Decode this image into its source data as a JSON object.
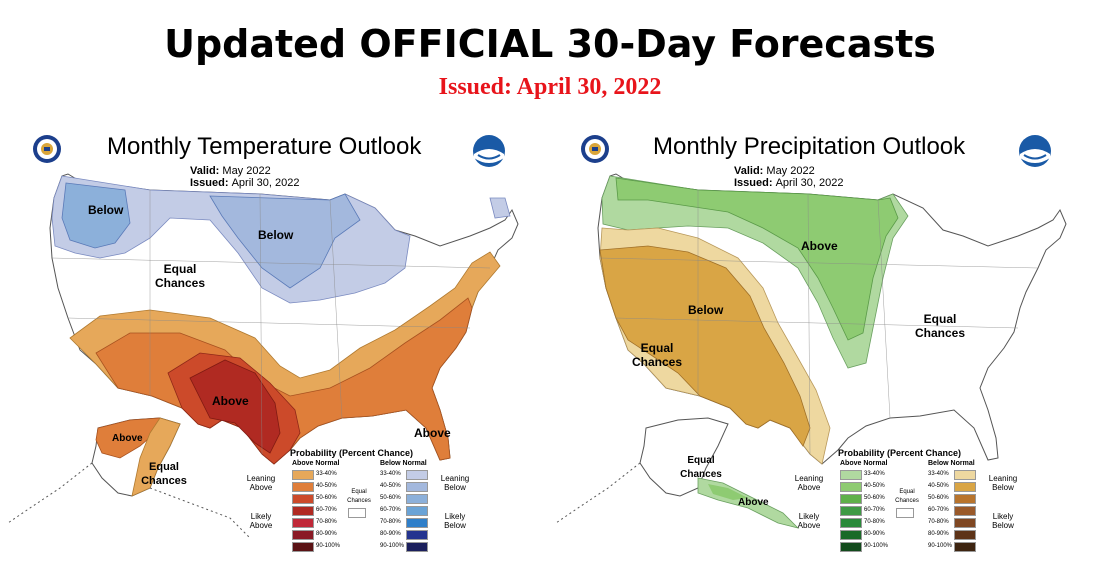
{
  "header": {
    "title": "Updated OFFICIAL 30-Day Forecasts",
    "issued": "Issued: April 30, 2022"
  },
  "temperature": {
    "title": "Monthly Temperature Outlook",
    "valid_label": "Valid:",
    "valid_value": "May 2022",
    "issued_label": "Issued:",
    "issued_value": "April 30, 2022",
    "regions": {
      "below_nw": "Below",
      "below_north": "Below",
      "equal_conus": "Equal Chances",
      "above_south": "Above",
      "above_fl": "Above",
      "above_ak": "Above",
      "equal_ak": "Equal Chances"
    },
    "colors": {
      "below_33": "#a8bedf",
      "below_40": "#8cb0da",
      "above_33": "#e6a85a",
      "above_40": "#df7e3a",
      "above_50": "#cc4a2a",
      "above_60": "#b02a22"
    }
  },
  "precipitation": {
    "title": "Monthly Precipitation Outlook",
    "valid_label": "Valid:",
    "valid_value": "May 2022",
    "issued_label": "Issued:",
    "issued_value": "April 30, 2022",
    "regions": {
      "above_north": "Above",
      "below_west": "Below",
      "equal_west": "Equal Chances",
      "equal_east": "Equal Chances",
      "equal_ak": "Equal Chances",
      "above_ak": "Above"
    },
    "colors": {
      "above_33": "#b0d9a0",
      "above_40": "#8ecb72",
      "below_33": "#eed8a0",
      "below_40": "#d9a545"
    }
  },
  "temp_legend": {
    "title": "Probability (Percent Chance)",
    "above_head": "Above Normal",
    "below_head": "Below Normal",
    "leaning_above": "Leaning Above",
    "likely_above": "Likely Above",
    "leaning_below": "Leaning Below",
    "likely_below": "Likely Below",
    "equal": "Equal Chances",
    "ranges": [
      "33-40%",
      "40-50%",
      "50-60%",
      "60-70%",
      "70-80%",
      "80-90%",
      "90-100%"
    ],
    "above_colors": [
      "#e6a85a",
      "#df7e3a",
      "#cc4a2a",
      "#b02a22",
      "#c02838",
      "#8a1a25",
      "#5a1214"
    ],
    "below_colors": [
      "#c3cce6",
      "#a3b8dd",
      "#8cb0da",
      "#6aa3d6",
      "#2f7fc9",
      "#24348f",
      "#1b1f5c"
    ]
  },
  "precip_legend": {
    "title": "Probability (Percent Chance)",
    "above_head": "Above Normal",
    "below_head": "Below Normal",
    "leaning_above": "Leaning Above",
    "likely_above": "Likely Above",
    "leaning_below": "Leaning Below",
    "likely_below": "Likely Below",
    "equal": "Equal Chances",
    "ranges": [
      "33-40%",
      "40-50%",
      "50-60%",
      "60-70%",
      "70-80%",
      "80-90%",
      "90-100%"
    ],
    "above_colors": [
      "#b0d9a0",
      "#8ecb72",
      "#5fb04a",
      "#3f9a45",
      "#2a8a3a",
      "#1a6a28",
      "#124a1c"
    ],
    "below_colors": [
      "#eed8a0",
      "#d9a545",
      "#b8742d",
      "#9a5a2a",
      "#7f4722",
      "#5d3318",
      "#3d2410"
    ]
  }
}
